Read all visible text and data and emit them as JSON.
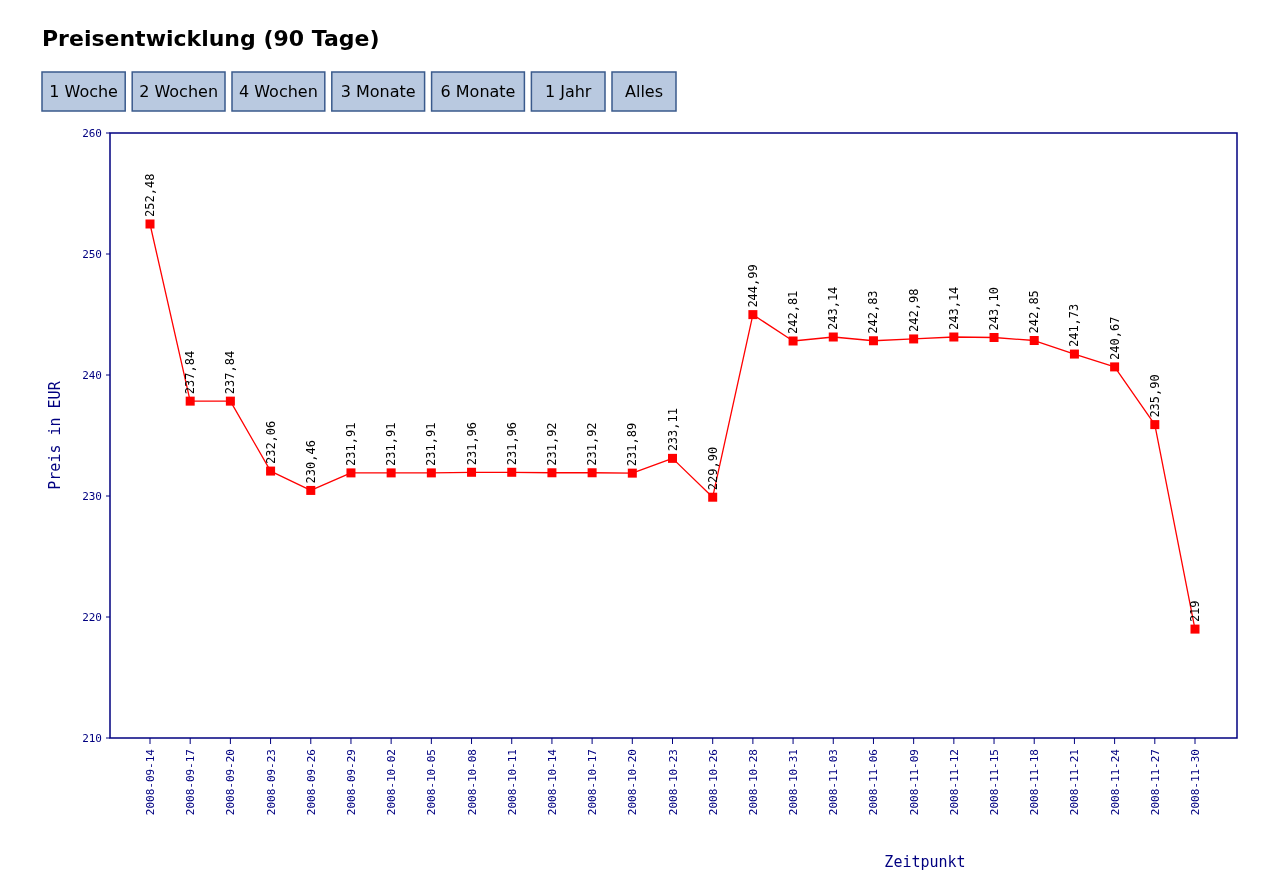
{
  "chart_data": {
    "type": "line",
    "title": "Preisentwicklung (90 Tage)",
    "annotations": [
      "1 Woche",
      "2 Wochen",
      "4 Wochen",
      "3 Monate",
      "6 Monate",
      "1 Jahr",
      "Alles"
    ],
    "xlabel": "Zeitpunkt",
    "ylabel": "Preis in EUR",
    "categories": [
      "2008-09-14",
      "2008-09-17",
      "2008-09-20",
      "2008-09-23",
      "2008-09-26",
      "2008-09-29",
      "2008-10-02",
      "2008-10-05",
      "2008-10-08",
      "2008-10-11",
      "2008-10-14",
      "2008-10-17",
      "2008-10-20",
      "2008-10-23",
      "2008-10-26",
      "2008-10-28",
      "2008-10-31",
      "2008-11-03",
      "2008-11-06",
      "2008-11-09",
      "2008-11-12",
      "2008-11-15",
      "2008-11-18",
      "2008-11-21",
      "2008-11-24",
      "2008-11-27",
      "2008-11-30"
    ],
    "series": [
      {
        "color": "#ff0000",
        "values": [
          252.48,
          237.84,
          237.84,
          232.06,
          230.46,
          231.91,
          231.91,
          231.91,
          231.96,
          231.96,
          231.92,
          231.92,
          231.89,
          233.11,
          229.9,
          244.99,
          242.81,
          243.14,
          242.83,
          242.98,
          243.14,
          243.1,
          242.85,
          241.73,
          240.67,
          235.9,
          219
        ],
        "value_labels": [
          "252,48",
          "237,84",
          "237,84",
          "232,06",
          "230,46",
          "231,91",
          "231,91",
          "231,91",
          "231,96",
          "231,96",
          "231,92",
          "231,92",
          "231,89",
          "233,11",
          "229,90",
          "244,99",
          "242,81",
          "243,14",
          "242,83",
          "242,98",
          "243,14",
          "243,10",
          "242,85",
          "241,73",
          "240,67",
          "235,90",
          "219"
        ]
      }
    ],
    "ylim": [
      210,
      260
    ],
    "yticks": [
      210,
      220,
      230,
      240,
      250,
      260
    ],
    "marker": "square",
    "line_style": "solid",
    "grid": false
  }
}
